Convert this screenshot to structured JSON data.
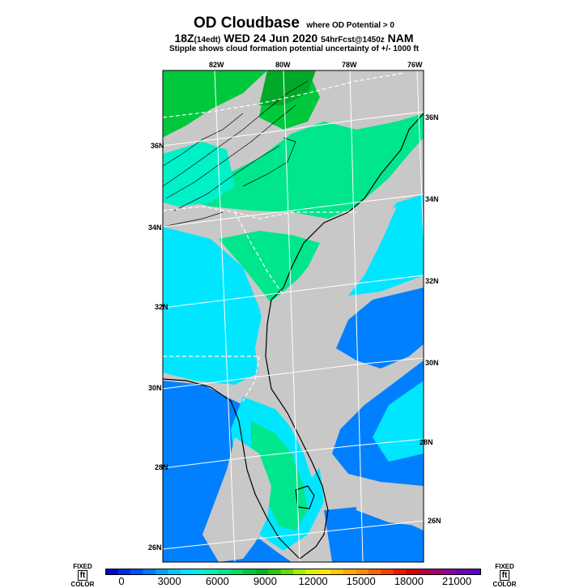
{
  "header": {
    "title": "OD Cloudbase",
    "title_qualifier": "where OD Potential > 0",
    "valid_time_lead": "18Z",
    "valid_time_local": "(14edt)",
    "valid_date": "WED 24 Jun 2020",
    "forecast_info": "54hrFcst@1450z",
    "model": "NAM",
    "note": "Stipple shows cloud formation potential uncertainty of +/- 1000 ft"
  },
  "map": {
    "lon_labels_top": [
      "82W",
      "80W",
      "78W",
      "76W"
    ],
    "lat_labels_left": [
      "36N",
      "34N",
      "32N",
      "30N",
      "28N",
      "26N"
    ],
    "lat_labels_right": [
      "36N",
      "34N",
      "32N",
      "30N",
      "28N",
      "26N"
    ],
    "colors": {
      "no_potential": "#c8c8c8",
      "cyan": "#00e6ff",
      "aqua": "#00f0c8",
      "teal_green": "#00e68c",
      "green": "#00c83c",
      "dark_green": "#00aa28",
      "blue": "#0080ff",
      "grid_line": "#ffffff",
      "coast_line": "#000000"
    }
  },
  "legend": {
    "left_label_top": "FIXED",
    "left_label_unit": "ft",
    "left_label_bottom": "COLOR",
    "right_label_top": "FIXED",
    "right_label_unit": "ft",
    "right_label_bottom": "COLOR",
    "ticks": [
      "0",
      "3000",
      "6000",
      "9000",
      "12000",
      "15000",
      "18000",
      "21000"
    ],
    "tick_values": [
      0,
      3000,
      6000,
      9000,
      12000,
      15000,
      18000,
      21000
    ],
    "max_value": 22500,
    "colors": [
      "#0000c8",
      "#0028e6",
      "#0050ff",
      "#0078ff",
      "#00a0ff",
      "#00c8ff",
      "#00e6ff",
      "#00f0dc",
      "#00f0b4",
      "#00e68c",
      "#00dc64",
      "#00c83c",
      "#00b428",
      "#28c800",
      "#64dc00",
      "#a0f000",
      "#dcf000",
      "#ffe600",
      "#ffc800",
      "#ffaa00",
      "#ff8c00",
      "#ff6400",
      "#ff3c00",
      "#f01400",
      "#d20000",
      "#b4003c",
      "#a0006e",
      "#8c00a0",
      "#6e00b4",
      "#5a00c8"
    ]
  }
}
